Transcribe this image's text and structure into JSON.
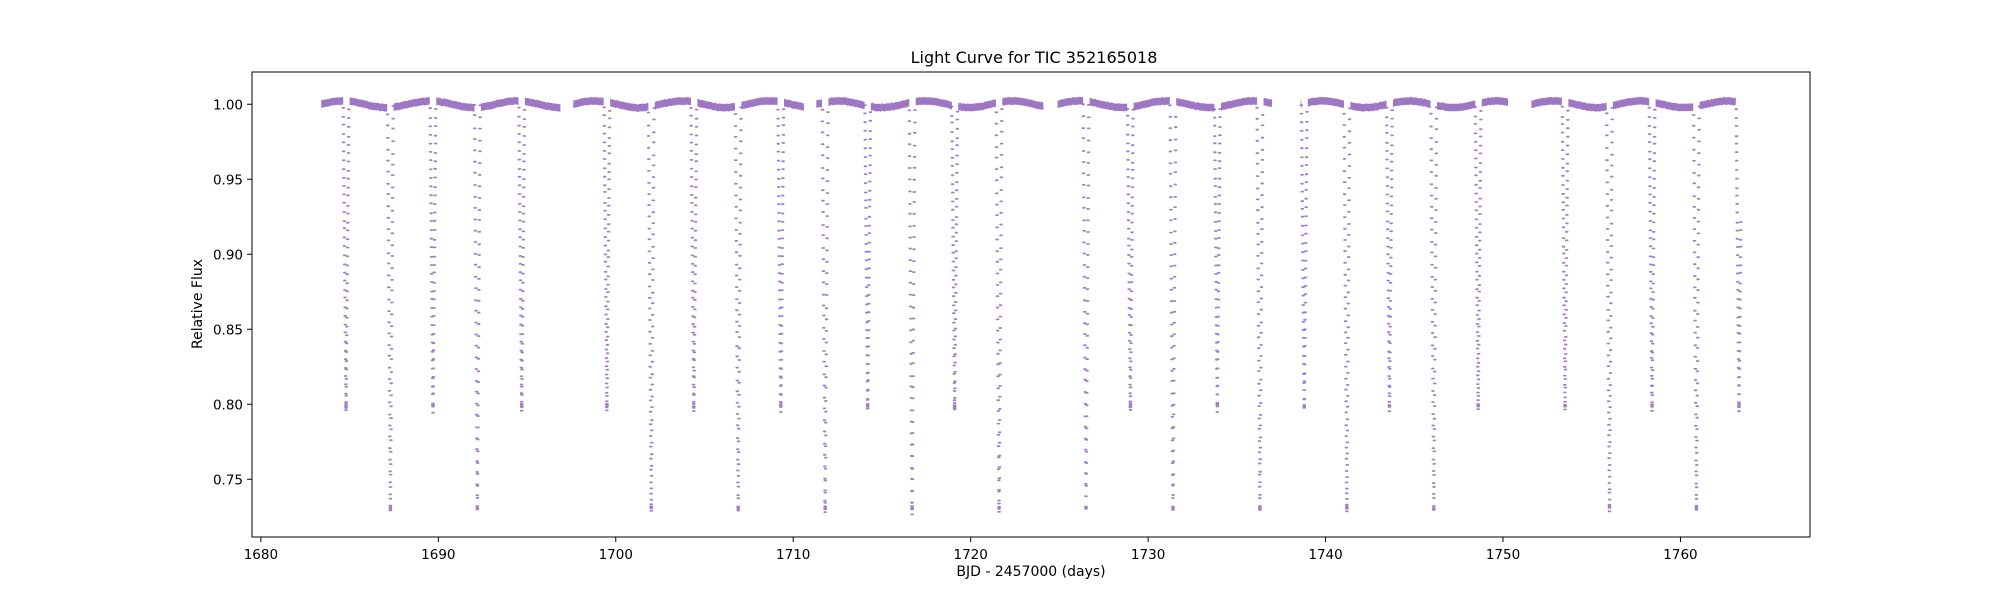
{
  "chart_data": {
    "type": "scatter",
    "title": "Light Curve for TIC 352165018",
    "xlabel": "BJD - 2457000 (days)",
    "ylabel": "Relative Flux",
    "xlim": [
      1679.5,
      1767.3
    ],
    "ylim": [
      0.7115,
      1.0215
    ],
    "xticks": [
      1680,
      1690,
      1700,
      1710,
      1720,
      1730,
      1740,
      1750,
      1760
    ],
    "yticks": [
      0.75,
      0.8,
      0.85,
      0.9,
      0.95,
      1.0
    ],
    "grid": false,
    "legend": "none",
    "marker_color": "#9467bd",
    "series": [
      {
        "observing_segments": [
          [
            1683.4,
            1696.9
          ],
          [
            1697.6,
            1710.6
          ],
          [
            1711.3,
            1724.1
          ],
          [
            1724.9,
            1737.0
          ],
          [
            1738.6,
            1750.3
          ],
          [
            1751.6,
            1763.4
          ]
        ],
        "out_of_eclipse_flux": 1.0,
        "primary_eclipses": [
          1687.3,
          1692.2,
          1702.0,
          1706.9,
          1711.8,
          1716.7,
          1721.6,
          1726.5,
          1731.4,
          1736.3,
          1741.2,
          1746.1,
          1756.0,
          1760.9
        ],
        "primary_eclipse_depth_flux": 0.727,
        "secondary_eclipses": [
          1684.8,
          1689.7,
          1694.7,
          1699.5,
          1704.4,
          1709.3,
          1714.2,
          1719.1,
          1729.0,
          1733.9,
          1738.8,
          1743.6,
          1748.6,
          1753.5,
          1758.4,
          1763.3
        ],
        "secondary_eclipse_depth_flux": 0.795
      }
    ]
  }
}
